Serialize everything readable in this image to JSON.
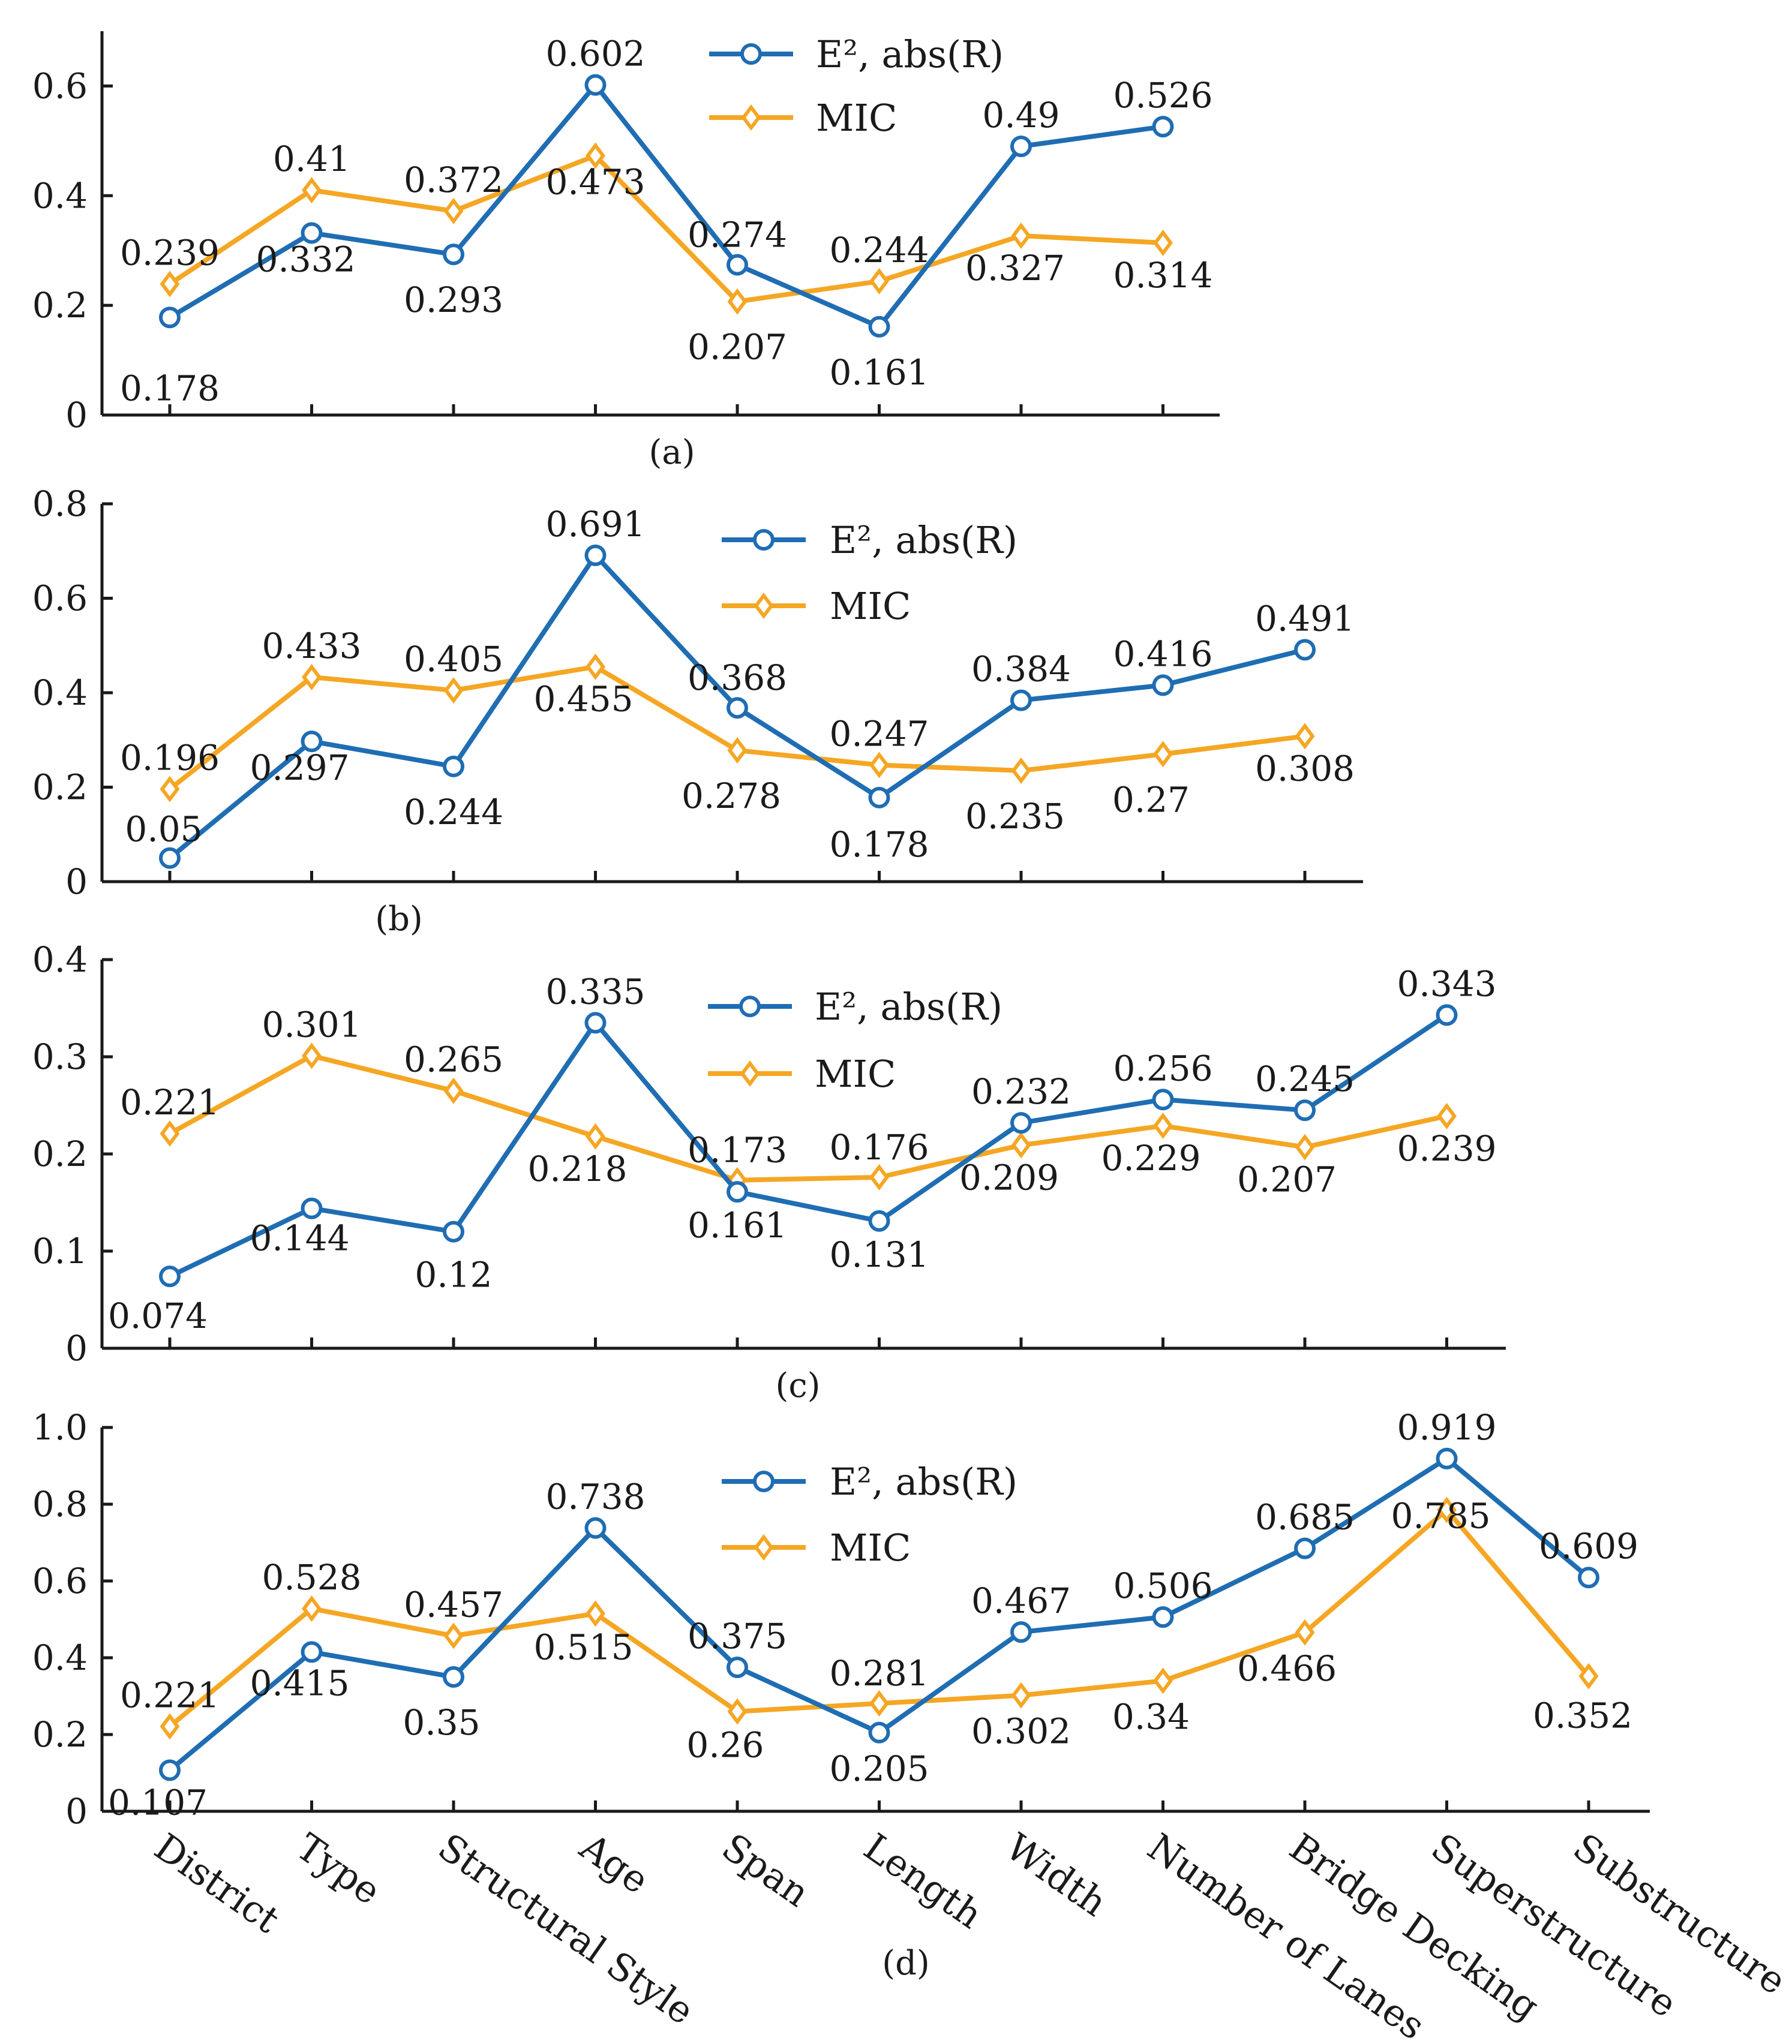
{
  "legend": {
    "series_a": "E², abs(R)",
    "series_b": "MIC"
  },
  "colors": {
    "series_a": "#1f6db3",
    "series_b": "#f5a623",
    "axis": "#1a1a1a"
  },
  "chart_data": [
    {
      "type": "line",
      "panel_label": "(a)",
      "categories": [
        "District",
        "Type",
        "Structural Style",
        "Age",
        "Span",
        "Length",
        "Width",
        "Number of Lanes"
      ],
      "ylim": [
        0,
        0.7
      ],
      "yticks": [
        "0",
        "0.2",
        "0.4",
        "0.6"
      ],
      "grid": false,
      "legend_position": "top",
      "series": [
        {
          "name": "E², abs(R)",
          "values": [
            0.178,
            0.332,
            0.293,
            0.602,
            0.274,
            0.161,
            0.49,
            0.526
          ],
          "labels": [
            "0.178",
            "0.332",
            "0.293",
            "0.602",
            "0.274",
            "0.161",
            "0.49",
            "0.526"
          ]
        },
        {
          "name": "MIC",
          "values": [
            0.239,
            0.41,
            0.372,
            0.473,
            0.207,
            0.244,
            0.327,
            0.314
          ],
          "labels": [
            "0.239",
            "0.41",
            "0.372",
            "0.473",
            "0.207",
            "0.244",
            "0.327",
            "0.314"
          ]
        }
      ]
    },
    {
      "type": "line",
      "panel_label": "(b)",
      "categories": [
        "District",
        "Type",
        "Structural Style",
        "Age",
        "Span",
        "Length",
        "Width",
        "Number of Lanes",
        "Bridge Decking"
      ],
      "ylim": [
        0,
        0.8
      ],
      "yticks": [
        "0",
        "0.2",
        "0.4",
        "0.6",
        "0.8"
      ],
      "grid": false,
      "legend_position": "top",
      "series": [
        {
          "name": "E², abs(R)",
          "values": [
            0.05,
            0.297,
            0.244,
            0.691,
            0.368,
            0.178,
            0.384,
            0.416,
            0.491
          ],
          "labels": [
            "0.05",
            "0.297",
            "0.244",
            "0.691",
            "0.368",
            "0.178",
            "0.384",
            "0.416",
            "0.491"
          ]
        },
        {
          "name": "MIC",
          "values": [
            0.196,
            0.433,
            0.405,
            0.455,
            0.278,
            0.247,
            0.235,
            0.27,
            0.308
          ],
          "labels": [
            "0.196",
            "0.433",
            "0.405",
            "0.455",
            "0.278",
            "0.247",
            "0.235",
            "0.27",
            "0.308"
          ]
        }
      ]
    },
    {
      "type": "line",
      "panel_label": "(c)",
      "categories": [
        "District",
        "Type",
        "Structural Style",
        "Age",
        "Span",
        "Length",
        "Width",
        "Number of Lanes",
        "Bridge Decking",
        "Superstructure"
      ],
      "ylim": [
        0,
        0.4
      ],
      "yticks": [
        "0",
        "0.1",
        "0.2",
        "0.3",
        "0.4"
      ],
      "grid": false,
      "legend_position": "top",
      "series": [
        {
          "name": "E², abs(R)",
          "values": [
            0.074,
            0.144,
            0.12,
            0.335,
            0.161,
            0.131,
            0.232,
            0.256,
            0.245,
            0.343
          ],
          "labels": [
            "0.074",
            "0.144",
            "0.12",
            "0.335",
            "0.161",
            "0.131",
            "0.232",
            "0.256",
            "0.245",
            "0.343"
          ]
        },
        {
          "name": "MIC",
          "values": [
            0.221,
            0.301,
            0.265,
            0.218,
            0.173,
            0.176,
            0.209,
            0.229,
            0.207,
            0.239
          ],
          "labels": [
            "0.221",
            "0.301",
            "0.265",
            "0.218",
            "0.173",
            "0.176",
            "0.209",
            "0.229",
            "0.207",
            "0.239"
          ]
        }
      ]
    },
    {
      "type": "line",
      "panel_label": "(d)",
      "categories": [
        "District",
        "Type",
        "Structural Style",
        "Age",
        "Span",
        "Length",
        "Width",
        "Number of Lanes",
        "Bridge Decking",
        "Superstructure",
        "Substructure"
      ],
      "ylim": [
        0,
        1.0
      ],
      "yticks": [
        "0",
        "0.2",
        "0.4",
        "0.6",
        "0.8",
        "1.0"
      ],
      "grid": false,
      "legend_position": "top",
      "series": [
        {
          "name": "E², abs(R)",
          "values": [
            0.107,
            0.415,
            0.35,
            0.738,
            0.375,
            0.205,
            0.467,
            0.506,
            0.685,
            0.919,
            0.609
          ],
          "labels": [
            "0.107",
            "0.415",
            "0.35",
            "0.738",
            "0.375",
            "0.205",
            "0.467",
            "0.506",
            "0.685",
            "0.919",
            "0.609"
          ]
        },
        {
          "name": "MIC",
          "values": [
            0.221,
            0.528,
            0.457,
            0.515,
            0.26,
            0.281,
            0.302,
            0.34,
            0.466,
            0.785,
            0.352
          ],
          "labels": [
            "0.221",
            "0.528",
            "0.457",
            "0.515",
            "0.26",
            "0.281",
            "0.302",
            "0.34",
            "0.466",
            "0.785",
            "0.352"
          ]
        }
      ]
    }
  ]
}
